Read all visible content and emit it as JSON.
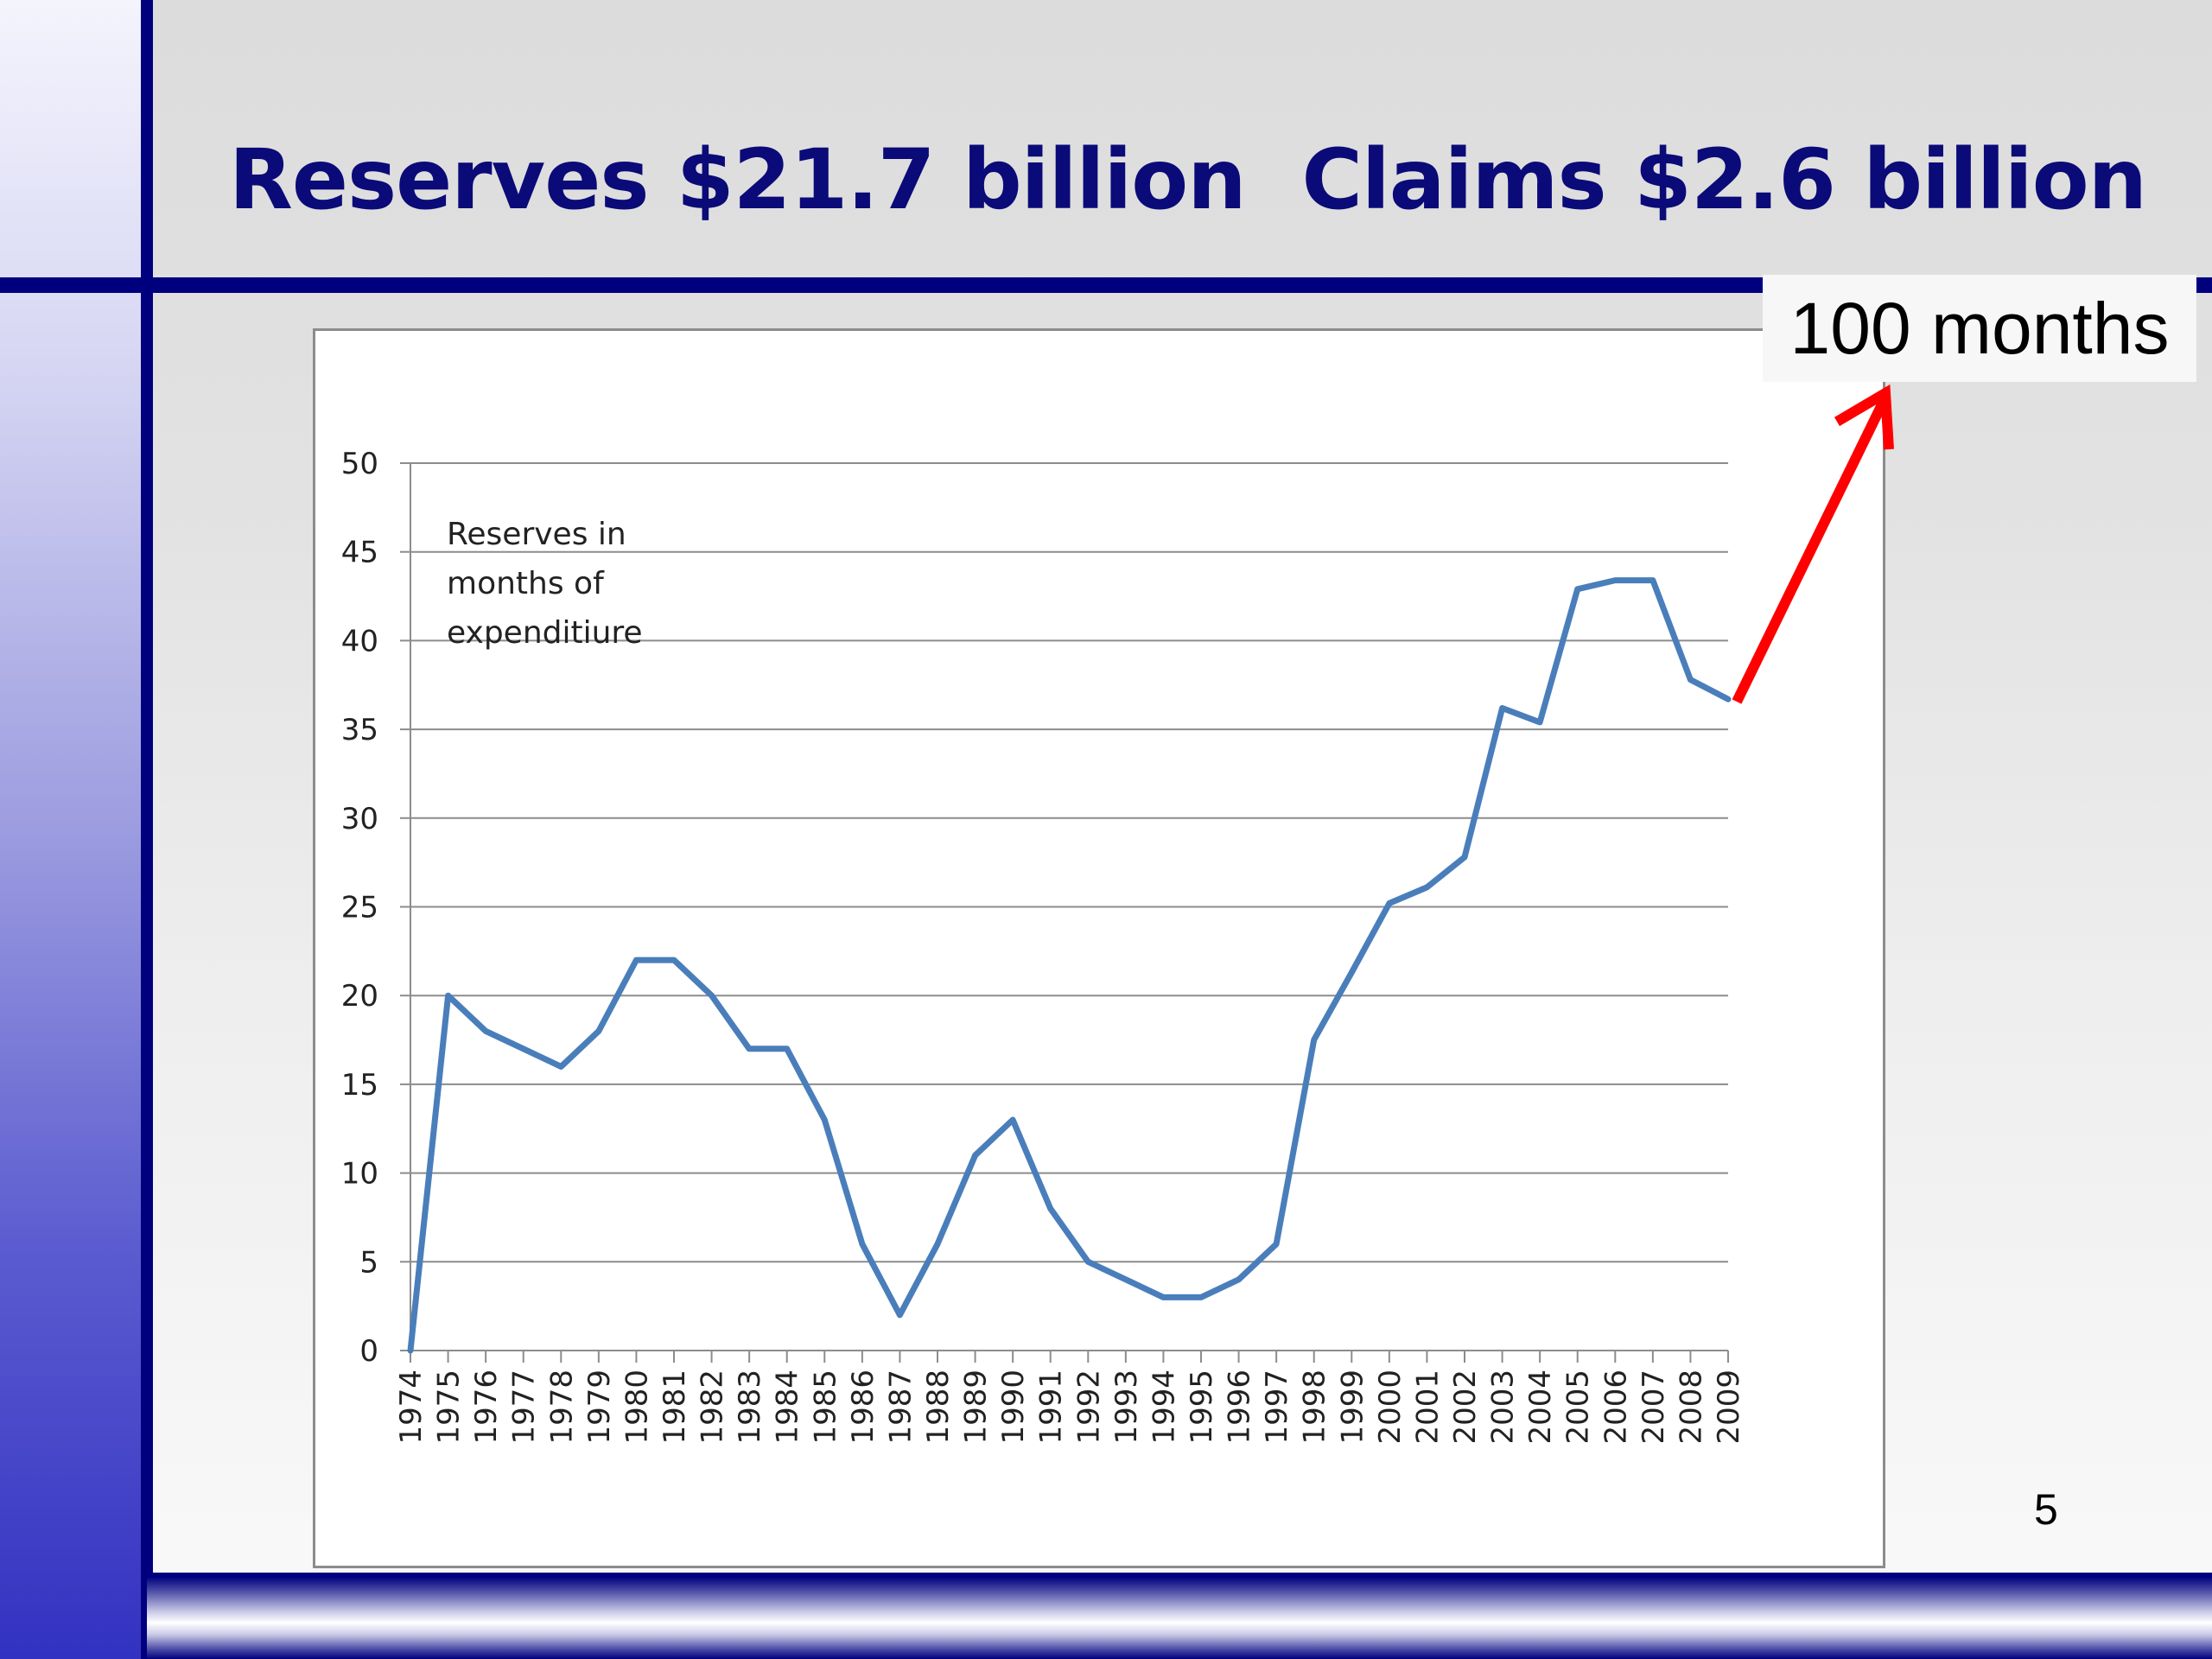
{
  "slide": {
    "title": "Reserves $21.7 billion  Claims $2.6 billion",
    "callout": "100 months",
    "page_number": "5",
    "colors": {
      "title": "#0a0a78",
      "navy_bars": "#00007f",
      "series": "#4a7ebb",
      "arrow": "#ff0000"
    }
  },
  "chart_data": {
    "type": "line",
    "title": "",
    "xlabel": "",
    "ylabel": "",
    "ylim": [
      0,
      50
    ],
    "yticks": [
      0,
      5,
      10,
      15,
      20,
      25,
      30,
      35,
      40,
      45,
      50
    ],
    "grid": true,
    "x": [
      "1974",
      "1975",
      "1976",
      "1977",
      "1978",
      "1979",
      "1980",
      "1981",
      "1982",
      "1983",
      "1984",
      "1985",
      "1986",
      "1987",
      "1988",
      "1989",
      "1990",
      "1991",
      "1992",
      "1993",
      "1994",
      "1995",
      "1996",
      "1997",
      "1998",
      "1999",
      "2000",
      "2001",
      "2002",
      "2003",
      "2004",
      "2005",
      "2006",
      "2007",
      "2008",
      "2009"
    ],
    "series": [
      {
        "values": [
          0,
          20,
          18,
          17,
          16,
          18,
          22,
          22,
          20,
          17,
          17,
          13,
          6,
          2,
          6,
          11,
          13,
          8,
          5,
          4,
          3,
          3,
          4,
          6,
          17.5,
          21.3,
          25.2,
          26.1,
          27.8,
          36.2,
          35.4,
          42.9,
          43.4,
          43.4,
          37.8,
          36.7
        ]
      }
    ],
    "annotation": [
      "Reserves in",
      "months of",
      "expenditiure"
    ]
  }
}
